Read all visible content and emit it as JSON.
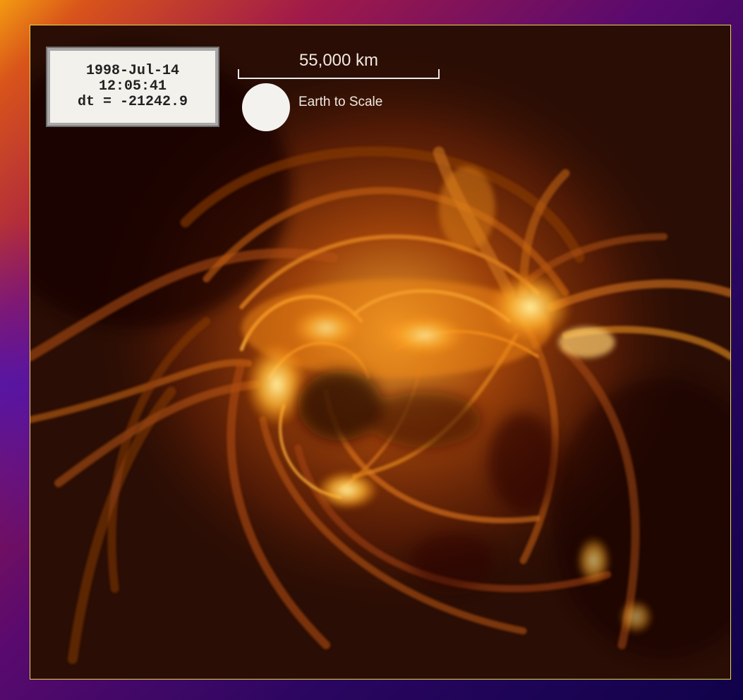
{
  "image": {
    "subject": "solar-coronal-loops",
    "palette": {
      "background_dark": "#1e0903",
      "glow_orange": "#f28a12",
      "glow_yellow": "#ffd24a",
      "frame_border": "#e8d94a"
    }
  },
  "timestamp": {
    "date": "1998-Jul-14",
    "time": "12:05:41",
    "dt": "dt = -21242.9"
  },
  "scale_bar": {
    "label": "55,000 km",
    "earth_label": "Earth to Scale"
  }
}
